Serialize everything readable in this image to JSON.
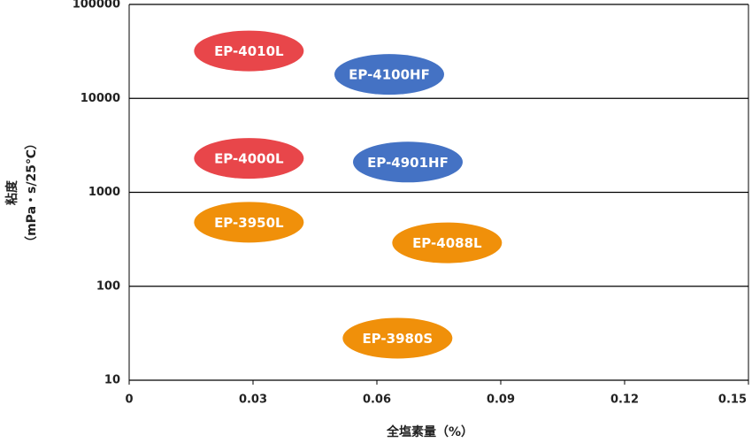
{
  "chart_data": {
    "type": "scatter",
    "xlabel": "全塩素量（%）",
    "ylabel": [
      "粘度",
      "（mPa・s/25℃）"
    ],
    "xlim": [
      0,
      0.15
    ],
    "xticks": [
      0,
      0.03,
      0.06,
      0.09,
      0.12,
      0.15
    ],
    "ylim": [
      10,
      100000
    ],
    "yticks": [
      10,
      100,
      1000,
      10000,
      100000
    ],
    "log_y": true,
    "grid": true,
    "series": [
      {
        "name": "EP-4010L",
        "color": "#e8464a",
        "x": [
          0.029
        ],
        "y": [
          32000
        ]
      },
      {
        "name": "EP-4100HF",
        "color": "#4472c4",
        "x": [
          0.063
        ],
        "y": [
          18000
        ]
      },
      {
        "name": "EP-4000L",
        "color": "#e8464a",
        "x": [
          0.029
        ],
        "y": [
          2300
        ]
      },
      {
        "name": "EP-4901HF",
        "color": "#4472c4",
        "x": [
          0.0675
        ],
        "y": [
          2100
        ]
      },
      {
        "name": "EP-3950L",
        "color": "#f0900a",
        "x": [
          0.029
        ],
        "y": [
          480
        ]
      },
      {
        "name": "EP-4088L",
        "color": "#f0900a",
        "x": [
          0.077
        ],
        "y": [
          290
        ]
      },
      {
        "name": "EP-3980S",
        "color": "#f0900a",
        "x": [
          0.065
        ],
        "y": [
          28
        ]
      }
    ]
  }
}
